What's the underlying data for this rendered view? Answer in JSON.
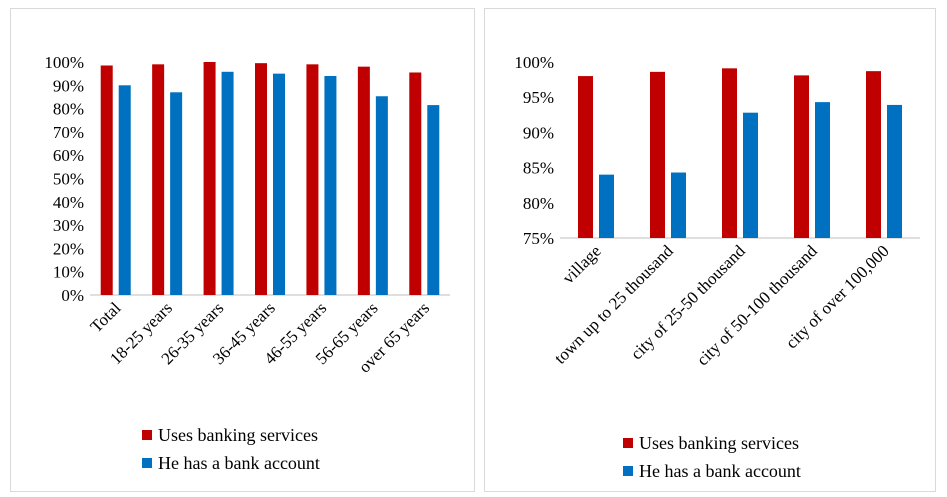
{
  "colors": {
    "series1": "#c00000",
    "series2": "#0070c0",
    "axis": "#bfbfbf"
  },
  "chart_data": [
    {
      "type": "bar",
      "title": "",
      "xlabel": "",
      "ylabel": "",
      "ylim": [
        0,
        100
      ],
      "yticks": [
        "0%",
        "10%",
        "20%",
        "30%",
        "40%",
        "50%",
        "60%",
        "70%",
        "80%",
        "90%",
        "100%"
      ],
      "grid": false,
      "legend_position": "bottom",
      "categories": [
        "Total",
        "18-25 years",
        "26-35 years",
        "36-45 years",
        "46-55 years",
        "56-65 years",
        "over 65 years"
      ],
      "series": [
        {
          "name": "Uses banking services",
          "color": "#c00000",
          "values": [
            98.5,
            99.0,
            100.0,
            99.5,
            99.0,
            98.0,
            95.5
          ]
        },
        {
          "name": "He has a bank account",
          "color": "#0070c0",
          "values": [
            90.0,
            87.0,
            95.8,
            95.0,
            94.0,
            85.3,
            81.5
          ]
        }
      ]
    },
    {
      "type": "bar",
      "title": "",
      "xlabel": "",
      "ylabel": "",
      "ylim": [
        75,
        100
      ],
      "yticks": [
        "75%",
        "80%",
        "85%",
        "90%",
        "95%",
        "100%"
      ],
      "grid": false,
      "legend_position": "bottom",
      "categories": [
        "village",
        "town up to 25 thousand",
        "city of 25-50 thousand",
        "city of 50-100 thousand",
        "city of over 100,000"
      ],
      "series": [
        {
          "name": "Uses banking services",
          "color": "#c00000",
          "values": [
            98.0,
            98.6,
            99.1,
            98.1,
            98.7
          ]
        },
        {
          "name": "He has a bank account",
          "color": "#0070c0",
          "values": [
            84.0,
            84.3,
            92.8,
            94.3,
            93.9
          ]
        }
      ]
    }
  ]
}
